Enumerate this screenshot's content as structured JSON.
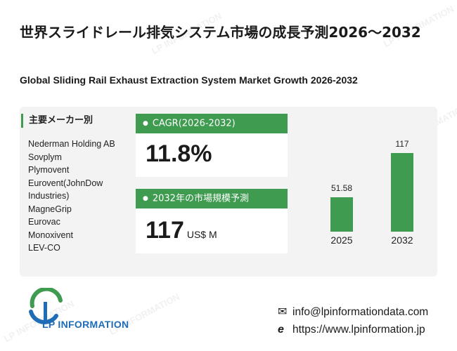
{
  "header": {
    "title_jp": "世界スライドレール排気システム市場の成長予測2026～2032",
    "title_en": "Global Sliding Rail Exhaust Extraction System Market Growth 2026-2032"
  },
  "makers": {
    "heading": "主要メーカー別",
    "items": [
      "Nederman Holding AB",
      "Sovplym",
      "Plymovent",
      "Eurovent(JohnDow Industries)",
      "MagneGrip",
      "Eurovac",
      "Monoxivent",
      "LEV-CO"
    ]
  },
  "kpis": {
    "cagr_label": "CAGR(2026-2032)",
    "cagr_value": "11.8%",
    "market_label": "2032年の市場規模予測",
    "market_value": "117",
    "market_unit": "US$ M"
  },
  "chart_data": {
    "type": "bar",
    "categories": [
      "2025",
      "2032"
    ],
    "values": [
      51.58,
      117
    ],
    "data_labels": [
      "51.58",
      "117"
    ],
    "bar_color": "#3e9b4f"
  },
  "brand": {
    "name": "LP INFORMATION",
    "watermark": "LP INFORMATION",
    "email": "info@lpinformationdata.com",
    "website": "https://www.lpinformation.jp",
    "accent": "#3e9b4f",
    "logo_blue": "#1e6db6"
  },
  "icons": {
    "email": "envelope-icon",
    "web": "globe-e-icon"
  }
}
